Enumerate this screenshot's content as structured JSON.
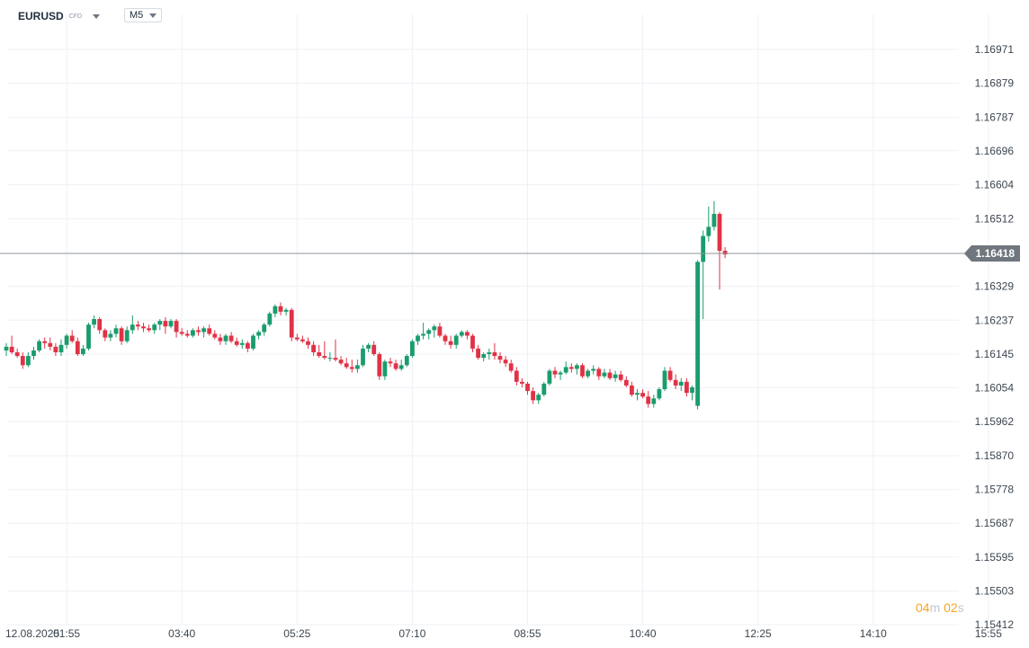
{
  "header": {
    "symbol": "EURUSD",
    "symbol_tag": "CFD",
    "interval": "M5"
  },
  "countdown": {
    "minutes": "04",
    "min_unit": "m",
    "seconds": "02",
    "sec_unit": "s"
  },
  "colors": {
    "up": "#1a9c6c",
    "down": "#e03246",
    "grid": "#eef1f4",
    "price_line": "#8e959c",
    "price_tag": "#6f767d"
  },
  "chart_data": {
    "type": "candlestick",
    "title": "",
    "xlabel": "",
    "ylabel": "",
    "ylim": [
      1.15412,
      1.17017
    ],
    "y_ticks": [
      "1.16971",
      "1.16879",
      "1.16787",
      "1.16696",
      "1.16604",
      "1.16512",
      "1.16329",
      "1.16237",
      "1.16145",
      "1.16054",
      "1.15962",
      "1.15870",
      "1.15778",
      "1.15687",
      "1.15595",
      "1.15503",
      "1.15412"
    ],
    "x_ticks": [
      {
        "label": "12.08.2025",
        "candle": 0
      },
      {
        "label": "01:55",
        "candle": 11
      },
      {
        "label": "03:40",
        "candle": 32
      },
      {
        "label": "05:25",
        "candle": 53
      },
      {
        "label": "07:10",
        "candle": 74
      },
      {
        "label": "08:55",
        "candle": 95
      },
      {
        "label": "10:40",
        "candle": 116
      },
      {
        "label": "12:25",
        "candle": 137
      },
      {
        "label": "14:10",
        "candle": 158
      },
      {
        "label": "15:55",
        "candle": 179
      }
    ],
    "current_price": 1.16418,
    "current_price_label": "1.16418",
    "candles": [
      [
        1.16155,
        1.16175,
        1.1614,
        1.16165
      ],
      [
        1.16165,
        1.16195,
        1.16145,
        1.1615
      ],
      [
        1.1615,
        1.1616,
        1.16135,
        1.1614
      ],
      [
        1.1614,
        1.1615,
        1.16105,
        1.16115
      ],
      [
        1.16115,
        1.1615,
        1.1611,
        1.1614
      ],
      [
        1.1614,
        1.16165,
        1.1613,
        1.16155
      ],
      [
        1.16155,
        1.16185,
        1.1615,
        1.1618
      ],
      [
        1.1618,
        1.1619,
        1.1616,
        1.16175
      ],
      [
        1.16175,
        1.1619,
        1.16155,
        1.16165
      ],
      [
        1.16165,
        1.16175,
        1.1614,
        1.1615
      ],
      [
        1.1615,
        1.16185,
        1.1614,
        1.1617
      ],
      [
        1.1617,
        1.162,
        1.1616,
        1.16195
      ],
      [
        1.16195,
        1.1621,
        1.16175,
        1.1618
      ],
      [
        1.1618,
        1.1619,
        1.1614,
        1.16145
      ],
      [
        1.16145,
        1.1617,
        1.1614,
        1.1616
      ],
      [
        1.1616,
        1.1623,
        1.16155,
        1.16225
      ],
      [
        1.16225,
        1.1625,
        1.16215,
        1.1624
      ],
      [
        1.1624,
        1.16245,
        1.162,
        1.1621
      ],
      [
        1.1621,
        1.16215,
        1.1618,
        1.1619
      ],
      [
        1.1619,
        1.1621,
        1.1618,
        1.162
      ],
      [
        1.162,
        1.16225,
        1.1619,
        1.16215
      ],
      [
        1.16215,
        1.1622,
        1.1617,
        1.1618
      ],
      [
        1.1618,
        1.1622,
        1.16175,
        1.1621
      ],
      [
        1.1621,
        1.1625,
        1.162,
        1.16225
      ],
      [
        1.16225,
        1.16235,
        1.1621,
        1.1622
      ],
      [
        1.1622,
        1.1623,
        1.16205,
        1.16215
      ],
      [
        1.16215,
        1.16225,
        1.16205,
        1.1621
      ],
      [
        1.1621,
        1.1623,
        1.162,
        1.16225
      ],
      [
        1.16225,
        1.1624,
        1.1621,
        1.16235
      ],
      [
        1.16235,
        1.16245,
        1.162,
        1.1622
      ],
      [
        1.1622,
        1.1624,
        1.16215,
        1.16235
      ],
      [
        1.16235,
        1.1624,
        1.1619,
        1.16205
      ],
      [
        1.16205,
        1.16215,
        1.16195,
        1.162
      ],
      [
        1.162,
        1.1621,
        1.1619,
        1.16195
      ],
      [
        1.16195,
        1.16215,
        1.1619,
        1.1621
      ],
      [
        1.1621,
        1.1622,
        1.16195,
        1.16205
      ],
      [
        1.16205,
        1.1622,
        1.1619,
        1.16215
      ],
      [
        1.16215,
        1.16225,
        1.16195,
        1.162
      ],
      [
        1.162,
        1.1621,
        1.16185,
        1.1619
      ],
      [
        1.1619,
        1.162,
        1.1617,
        1.1618
      ],
      [
        1.1618,
        1.162,
        1.1617,
        1.16195
      ],
      [
        1.16195,
        1.16205,
        1.16175,
        1.1618
      ],
      [
        1.1618,
        1.1619,
        1.16165,
        1.1617
      ],
      [
        1.1617,
        1.16185,
        1.1616,
        1.16175
      ],
      [
        1.16175,
        1.1618,
        1.1615,
        1.1616
      ],
      [
        1.1616,
        1.162,
        1.16155,
        1.16195
      ],
      [
        1.16195,
        1.1621,
        1.16185,
        1.16205
      ],
      [
        1.16205,
        1.1623,
        1.16195,
        1.16225
      ],
      [
        1.16225,
        1.1626,
        1.1622,
        1.16255
      ],
      [
        1.16255,
        1.1628,
        1.16245,
        1.16275
      ],
      [
        1.16275,
        1.16285,
        1.1625,
        1.1626
      ],
      [
        1.1626,
        1.1627,
        1.1625,
        1.16265
      ],
      [
        1.16265,
        1.1627,
        1.1618,
        1.1619
      ],
      [
        1.1619,
        1.162,
        1.1618,
        1.16185
      ],
      [
        1.16185,
        1.16195,
        1.16175,
        1.1618
      ],
      [
        1.1618,
        1.1619,
        1.1616,
        1.1617
      ],
      [
        1.1617,
        1.1618,
        1.1614,
        1.1615
      ],
      [
        1.1615,
        1.1617,
        1.16135,
        1.1614
      ],
      [
        1.1614,
        1.1618,
        1.1613,
        1.16135
      ],
      [
        1.16135,
        1.1615,
        1.16125,
        1.16135
      ],
      [
        1.16135,
        1.16185,
        1.16125,
        1.1613
      ],
      [
        1.1613,
        1.1614,
        1.16115,
        1.1612
      ],
      [
        1.1612,
        1.16135,
        1.16105,
        1.1611
      ],
      [
        1.1611,
        1.1613,
        1.16095,
        1.16105
      ],
      [
        1.16105,
        1.1613,
        1.16095,
        1.16115
      ],
      [
        1.16115,
        1.1617,
        1.1611,
        1.1616
      ],
      [
        1.1616,
        1.16175,
        1.1615,
        1.1617
      ],
      [
        1.1617,
        1.1618,
        1.1614,
        1.16145
      ],
      [
        1.16145,
        1.1615,
        1.16075,
        1.16085
      ],
      [
        1.16085,
        1.1613,
        1.16075,
        1.16125
      ],
      [
        1.16125,
        1.16135,
        1.1611,
        1.1612
      ],
      [
        1.1612,
        1.1613,
        1.161,
        1.16105
      ],
      [
        1.16105,
        1.1613,
        1.161,
        1.16115
      ],
      [
        1.16115,
        1.16145,
        1.1611,
        1.1614
      ],
      [
        1.1614,
        1.16185,
        1.16135,
        1.1618
      ],
      [
        1.1618,
        1.162,
        1.1617,
        1.16195
      ],
      [
        1.16195,
        1.1623,
        1.16185,
        1.162
      ],
      [
        1.162,
        1.16215,
        1.16185,
        1.1621
      ],
      [
        1.1621,
        1.16225,
        1.1619,
        1.1622
      ],
      [
        1.1622,
        1.1623,
        1.1619,
        1.16195
      ],
      [
        1.16195,
        1.162,
        1.1617,
        1.1618
      ],
      [
        1.1618,
        1.16195,
        1.1616,
        1.1617
      ],
      [
        1.1617,
        1.162,
        1.1616,
        1.16195
      ],
      [
        1.16195,
        1.1621,
        1.1619,
        1.16205
      ],
      [
        1.16205,
        1.1621,
        1.16185,
        1.16195
      ],
      [
        1.16195,
        1.162,
        1.1615,
        1.1616
      ],
      [
        1.1616,
        1.1617,
        1.1613,
        1.16135
      ],
      [
        1.16135,
        1.1615,
        1.16125,
        1.16145
      ],
      [
        1.16145,
        1.1616,
        1.1613,
        1.1615
      ],
      [
        1.1615,
        1.16175,
        1.1613,
        1.1614
      ],
      [
        1.1614,
        1.1615,
        1.1612,
        1.1613
      ],
      [
        1.1613,
        1.1614,
        1.1611,
        1.1612
      ],
      [
        1.1612,
        1.1613,
        1.16095,
        1.161
      ],
      [
        1.161,
        1.1611,
        1.1606,
        1.1607
      ],
      [
        1.1607,
        1.1608,
        1.16055,
        1.16065
      ],
      [
        1.16065,
        1.1607,
        1.16035,
        1.16045
      ],
      [
        1.16045,
        1.16055,
        1.1601,
        1.1602
      ],
      [
        1.1602,
        1.1604,
        1.1601,
        1.16035
      ],
      [
        1.16035,
        1.1607,
        1.1603,
        1.16065
      ],
      [
        1.16065,
        1.16105,
        1.1606,
        1.161
      ],
      [
        1.161,
        1.1611,
        1.1608,
        1.1609
      ],
      [
        1.1609,
        1.161,
        1.16075,
        1.16095
      ],
      [
        1.16095,
        1.16125,
        1.1609,
        1.1611
      ],
      [
        1.1611,
        1.1612,
        1.16095,
        1.16105
      ],
      [
        1.16105,
        1.1612,
        1.1609,
        1.16115
      ],
      [
        1.16115,
        1.1612,
        1.1608,
        1.16085
      ],
      [
        1.16085,
        1.16105,
        1.1608,
        1.161
      ],
      [
        1.161,
        1.16115,
        1.1609,
        1.16105
      ],
      [
        1.16105,
        1.1611,
        1.16075,
        1.16085
      ],
      [
        1.16085,
        1.16105,
        1.1608,
        1.16095
      ],
      [
        1.16095,
        1.16105,
        1.16075,
        1.1608
      ],
      [
        1.1608,
        1.161,
        1.1607,
        1.1609
      ],
      [
        1.1609,
        1.161,
        1.1607,
        1.16075
      ],
      [
        1.16075,
        1.16085,
        1.16055,
        1.1606
      ],
      [
        1.1606,
        1.1607,
        1.1603,
        1.16035
      ],
      [
        1.16035,
        1.1605,
        1.1602,
        1.1604
      ],
      [
        1.1604,
        1.1605,
        1.16025,
        1.1603
      ],
      [
        1.1603,
        1.16045,
        1.16,
        1.1601
      ],
      [
        1.1601,
        1.16035,
        1.16,
        1.16025
      ],
      [
        1.16025,
        1.16055,
        1.1602,
        1.1605
      ],
      [
        1.1605,
        1.1611,
        1.16045,
        1.161
      ],
      [
        1.161,
        1.1611,
        1.1607,
        1.16075
      ],
      [
        1.16075,
        1.1609,
        1.1605,
        1.1606
      ],
      [
        1.1606,
        1.1608,
        1.16045,
        1.1607
      ],
      [
        1.1607,
        1.1608,
        1.1603,
        1.1604
      ],
      [
        1.1604,
        1.1606,
        1.1602,
        1.16055
      ],
      [
        1.16005,
        1.164,
        1.15995,
        1.16395
      ],
      [
        1.16395,
        1.1648,
        1.1624,
        1.16465
      ],
      [
        1.16465,
        1.16545,
        1.1645,
        1.1649
      ],
      [
        1.1649,
        1.1656,
        1.1648,
        1.16525
      ],
      [
        1.16525,
        1.1653,
        1.1632,
        1.16425
      ],
      [
        1.16425,
        1.16435,
        1.16405,
        1.16415
      ]
    ]
  }
}
